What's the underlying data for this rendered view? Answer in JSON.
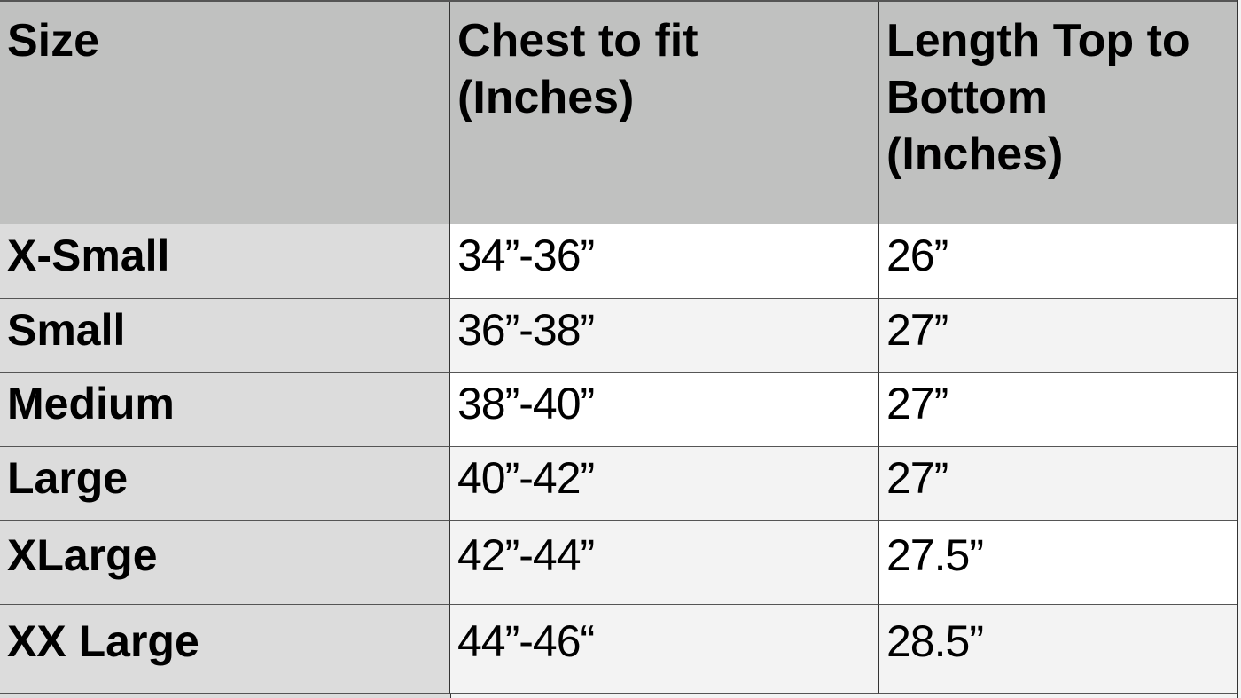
{
  "table": {
    "headers": [
      "Size",
      "Chest to fit (Inches)",
      "Length Top to Bottom (Inches)"
    ],
    "header_lines": {
      "chest": [
        "Chest to fit",
        "(Inches)"
      ],
      "length": [
        "Length Top to",
        "Bottom",
        "(Inches)"
      ]
    },
    "rows": [
      {
        "size": "X-Small",
        "chest": "34”-36”",
        "length": "26”"
      },
      {
        "size": "Small",
        "chest": "36”-38”",
        "length": "27”"
      },
      {
        "size": "Medium",
        "chest": "38”-40”",
        "length": "27”"
      },
      {
        "size": "Large",
        "chest": "40”-42”",
        "length": "27”"
      },
      {
        "size": "XLarge",
        "chest": "42”-44”",
        "length": "27.5”"
      },
      {
        "size": "XX Large",
        "chest": "44”-46“",
        "length": "28.5”"
      }
    ]
  },
  "colors": {
    "header_bg": "#c0c1c0",
    "size_col_bg": "#dcdcdc",
    "alt_row_bg": "#f3f3f3"
  }
}
